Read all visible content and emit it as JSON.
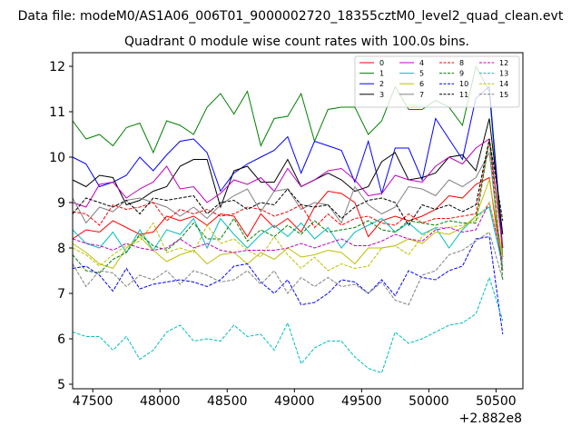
{
  "header": {
    "datafile": "Data file: modeM0/AS1A06_006T01_9000002720_18355cztM0_level2_quad_clean.evt"
  },
  "chart_data": {
    "type": "line",
    "title": "Quadrant 0 module wise count rates with 100.0s bins.",
    "xlabel": "",
    "ylabel": "",
    "x_offset_label": "+2.882e8",
    "xlim": [
      47350,
      50700
    ],
    "ylim": [
      4.9,
      12.3
    ],
    "xticks": [
      47500,
      48000,
      48500,
      49000,
      49500,
      50000,
      50500
    ],
    "yticks": [
      5,
      6,
      7,
      8,
      9,
      10,
      11,
      12
    ],
    "legend_position": "top-right",
    "x": [
      47350,
      47450,
      47550,
      47650,
      47750,
      47850,
      47950,
      48050,
      48150,
      48250,
      48350,
      48450,
      48550,
      48650,
      48750,
      48850,
      48950,
      49050,
      49150,
      49250,
      49350,
      49450,
      49550,
      49650,
      49750,
      49850,
      49950,
      50050,
      50150,
      50250,
      50350,
      50450,
      50550
    ],
    "series": [
      {
        "name": "0",
        "color": "#ff0000",
        "dash": "solid",
        "values": [
          8.2,
          8.4,
          8.35,
          8.6,
          8.45,
          8.3,
          8.35,
          8.7,
          8.6,
          8.7,
          8.5,
          8.75,
          8.7,
          8.25,
          8.75,
          8.45,
          8.65,
          8.35,
          8.9,
          9.25,
          9.2,
          9.0,
          8.25,
          8.6,
          8.7,
          8.6,
          8.7,
          8.85,
          9.15,
          9.1,
          9.4,
          9.55,
          7.5
        ]
      },
      {
        "name": "1",
        "color": "#008000",
        "dash": "solid",
        "values": [
          10.8,
          10.4,
          10.5,
          10.25,
          10.65,
          10.75,
          10.1,
          10.8,
          10.7,
          10.5,
          11.1,
          11.4,
          10.95,
          11.45,
          10.25,
          10.85,
          10.9,
          11.4,
          10.35,
          11.05,
          11.1,
          11.1,
          10.5,
          10.8,
          11.55,
          11.05,
          11.05,
          11.25,
          11.1,
          10.7,
          12.0,
          11.45,
          7.8
        ]
      },
      {
        "name": "2",
        "color": "#0000ff",
        "dash": "solid",
        "values": [
          10.0,
          9.85,
          9.35,
          9.45,
          9.6,
          10.0,
          9.7,
          10.05,
          10.35,
          10.4,
          10.1,
          9.25,
          9.65,
          9.85,
          10.0,
          10.15,
          10.45,
          9.65,
          10.35,
          10.25,
          10.15,
          9.45,
          10.35,
          9.2,
          10.2,
          10.2,
          9.5,
          10.85,
          10.4,
          9.95,
          11.3,
          11.55,
          8.0
        ]
      },
      {
        "name": "3",
        "color": "#000000",
        "dash": "solid",
        "values": [
          9.5,
          9.35,
          9.6,
          9.55,
          8.95,
          9.05,
          9.25,
          9.35,
          9.8,
          9.95,
          9.95,
          8.9,
          9.7,
          9.8,
          9.45,
          9.45,
          9.95,
          9.35,
          9.5,
          9.65,
          9.5,
          9.25,
          9.35,
          9.9,
          10.1,
          9.5,
          9.55,
          9.65,
          10.0,
          10.05,
          9.7,
          10.85,
          8.3
        ]
      },
      {
        "name": "4",
        "color": "#bf00bf",
        "dash": "solid",
        "values": [
          9.0,
          8.9,
          9.4,
          9.45,
          9.1,
          9.3,
          9.45,
          9.8,
          9.3,
          9.35,
          9.0,
          9.2,
          9.5,
          9.4,
          9.55,
          9.25,
          9.75,
          9.35,
          9.5,
          9.7,
          9.75,
          9.5,
          9.15,
          9.2,
          9.6,
          9.5,
          9.45,
          9.8,
          10.0,
          9.85,
          10.2,
          10.4,
          8.0
        ]
      },
      {
        "name": "5",
        "color": "#00bfbf",
        "dash": "solid",
        "values": [
          8.4,
          8.1,
          8.0,
          8.35,
          7.9,
          8.4,
          7.95,
          8.4,
          8.3,
          8.65,
          8.0,
          8.65,
          8.3,
          8.0,
          8.3,
          8.5,
          8.25,
          8.55,
          8.2,
          8.45,
          8.0,
          8.35,
          8.5,
          8.65,
          8.35,
          8.55,
          8.3,
          8.45,
          8.0,
          8.4,
          8.7,
          8.9,
          7.6
        ]
      },
      {
        "name": "6",
        "color": "#bfbf00",
        "dash": "solid",
        "values": [
          8.1,
          7.9,
          7.65,
          7.55,
          8.0,
          8.25,
          7.95,
          7.7,
          7.85,
          7.95,
          7.65,
          7.85,
          7.9,
          7.65,
          7.9,
          7.75,
          8.0,
          7.8,
          7.85,
          7.95,
          7.9,
          7.65,
          8.0,
          8.0,
          8.05,
          8.2,
          8.1,
          8.35,
          8.3,
          8.45,
          8.7,
          9.5,
          7.8
        ]
      },
      {
        "name": "7",
        "color": "#808080",
        "dash": "solid",
        "values": [
          9.1,
          8.55,
          8.9,
          8.8,
          9.05,
          9.1,
          9.0,
          8.9,
          8.7,
          8.9,
          8.65,
          8.95,
          9.15,
          9.3,
          8.8,
          9.25,
          9.3,
          8.85,
          9.0,
          8.95,
          8.55,
          9.35,
          8.95,
          8.75,
          8.9,
          9.35,
          9.3,
          9.15,
          9.5,
          9.35,
          9.55,
          10.1,
          7.5
        ]
      },
      {
        "name": "8",
        "color": "#ff0000",
        "dash": "dashed",
        "values": [
          8.8,
          8.75,
          8.5,
          8.95,
          8.85,
          8.9,
          9.0,
          8.6,
          8.85,
          8.75,
          8.85,
          8.7,
          8.75,
          8.9,
          8.85,
          8.7,
          8.8,
          8.95,
          8.45,
          8.75,
          8.5,
          8.65,
          8.7,
          8.55,
          8.5,
          8.75,
          8.55,
          8.65,
          8.65,
          8.7,
          8.75,
          10.35,
          8.0
        ]
      },
      {
        "name": "9",
        "color": "#008000",
        "dash": "dashed",
        "values": [
          7.85,
          7.5,
          7.45,
          7.75,
          7.9,
          8.3,
          8.05,
          7.95,
          8.2,
          8.55,
          8.2,
          8.2,
          8.65,
          8.15,
          8.4,
          8.25,
          8.5,
          8.3,
          8.6,
          8.35,
          8.4,
          8.45,
          8.6,
          8.4,
          8.35,
          8.6,
          8.55,
          8.5,
          8.6,
          8.55,
          8.55,
          10.4,
          7.3
        ]
      },
      {
        "name": "10",
        "color": "#0000ff",
        "dash": "dashed",
        "values": [
          7.55,
          7.6,
          7.4,
          7.05,
          7.55,
          7.1,
          7.2,
          7.25,
          7.3,
          7.25,
          7.15,
          7.3,
          7.6,
          7.65,
          7.25,
          7.0,
          7.3,
          6.75,
          6.8,
          7.0,
          7.3,
          7.25,
          7.0,
          7.3,
          6.95,
          7.5,
          7.35,
          7.3,
          7.5,
          7.6,
          8.2,
          8.25,
          6.1
        ]
      },
      {
        "name": "11",
        "color": "#000000",
        "dash": "dashed",
        "values": [
          8.75,
          9.1,
          9.0,
          8.9,
          9.05,
          8.75,
          9.1,
          9.05,
          9.1,
          9.15,
          8.75,
          9.0,
          9.05,
          8.85,
          9.0,
          8.95,
          9.3,
          8.95,
          8.9,
          8.95,
          8.65,
          8.9,
          9.05,
          9.1,
          9.0,
          8.5,
          8.95,
          8.85,
          8.95,
          8.8,
          8.95,
          10.4,
          8.6
        ]
      },
      {
        "name": "12",
        "color": "#bf00bf",
        "dash": "dashed",
        "values": [
          8.2,
          8.1,
          8.05,
          7.95,
          8.1,
          8.0,
          7.95,
          8.0,
          8.2,
          8.0,
          8.1,
          7.95,
          7.9,
          7.95,
          7.95,
          7.95,
          8.0,
          8.1,
          8.0,
          8.1,
          8.2,
          8.05,
          8.05,
          8.15,
          8.3,
          8.2,
          8.15,
          8.4,
          8.45,
          8.35,
          8.4,
          9.0,
          7.7
        ]
      },
      {
        "name": "13",
        "color": "#00bfbf",
        "dash": "dashed",
        "values": [
          6.15,
          6.05,
          6.05,
          5.75,
          6.05,
          5.55,
          5.75,
          6.15,
          6.3,
          5.95,
          6.0,
          5.95,
          6.3,
          6.05,
          6.1,
          5.75,
          6.35,
          5.45,
          5.8,
          5.95,
          5.95,
          5.6,
          5.35,
          5.25,
          6.15,
          5.9,
          6.0,
          6.15,
          6.3,
          6.35,
          6.55,
          7.35,
          6.4
        ]
      },
      {
        "name": "14",
        "color": "#bfbf00",
        "dash": "dashed",
        "values": [
          8.0,
          7.85,
          7.6,
          7.85,
          8.05,
          8.15,
          8.55,
          7.9,
          8.0,
          7.9,
          8.5,
          8.1,
          8.2,
          7.95,
          7.8,
          8.25,
          7.85,
          7.55,
          7.8,
          7.5,
          7.65,
          7.55,
          7.6,
          8.0,
          8.05,
          7.85,
          8.25,
          8.45,
          8.45,
          8.5,
          8.6,
          9.0,
          7.8
        ]
      },
      {
        "name": "15",
        "color": "#808080",
        "dash": "dashed",
        "values": [
          7.65,
          7.15,
          7.5,
          7.45,
          7.15,
          7.4,
          7.3,
          7.5,
          7.2,
          7.5,
          7.4,
          7.25,
          7.3,
          7.5,
          7.2,
          7.5,
          7.0,
          7.35,
          7.15,
          7.35,
          7.15,
          7.2,
          7.0,
          7.25,
          6.85,
          6.75,
          7.4,
          7.5,
          7.85,
          7.95,
          8.15,
          8.35,
          7.3
        ]
      }
    ]
  }
}
